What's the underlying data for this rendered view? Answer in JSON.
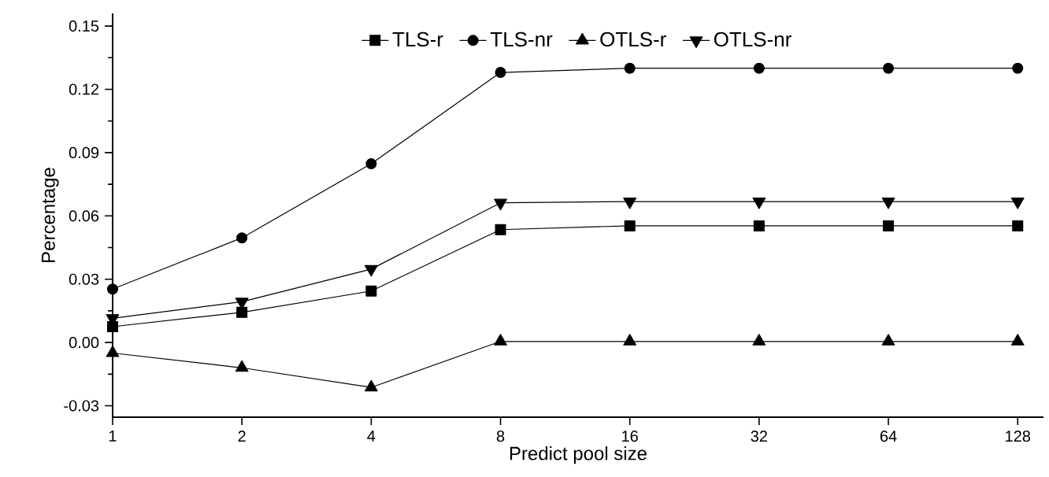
{
  "chart_data": {
    "type": "line",
    "xlabel": "Predict pool size",
    "ylabel": "Percentage",
    "x": [
      1,
      2,
      4,
      8,
      16,
      32,
      64,
      128
    ],
    "series": [
      {
        "name": "TLS-r",
        "color": "#000000",
        "marker": "square",
        "values": [
          0.0075,
          0.0143,
          0.0244,
          0.0535,
          0.0553,
          0.0553,
          0.0553,
          0.0553
        ]
      },
      {
        "name": "TLS-nr",
        "color": "#000000",
        "marker": "circle",
        "values": [
          0.0253,
          0.0496,
          0.0847,
          0.128,
          0.13,
          0.13,
          0.13,
          0.13
        ]
      },
      {
        "name": "OTLS-r",
        "color": "#000000",
        "marker": "triangle",
        "values": [
          -0.005,
          -0.012,
          -0.0213,
          0.0005,
          0.0005,
          0.0005,
          0.0005,
          0.0005
        ]
      },
      {
        "name": "OTLS-nr",
        "color": "#000000",
        "marker": "triangle-down",
        "values": [
          0.0115,
          0.0193,
          0.0348,
          0.0662,
          0.0668,
          0.0668,
          0.0668,
          0.0668
        ]
      }
    ],
    "log": "x",
    "xlim": [
      1,
      147
    ],
    "ylim": [
      -0.0354,
      0.156
    ],
    "xticks": [
      1,
      2,
      4,
      8,
      16,
      32,
      64,
      128
    ],
    "yticks": [
      -0.03,
      {
        "value": -0.015,
        "label": null
      },
      {
        "value": 0,
        "label": "0.00"
      },
      {
        "value": 0.015,
        "label": null
      },
      0.03,
      {
        "value": 0.045,
        "label": null
      },
      0.06,
      {
        "value": 0.075,
        "label": null
      },
      0.09,
      {
        "value": 0.105,
        "label": null
      },
      0.12,
      {
        "value": 0.135,
        "label": null
      },
      0.15
    ],
    "legend": "top",
    "line_style": "solid"
  }
}
